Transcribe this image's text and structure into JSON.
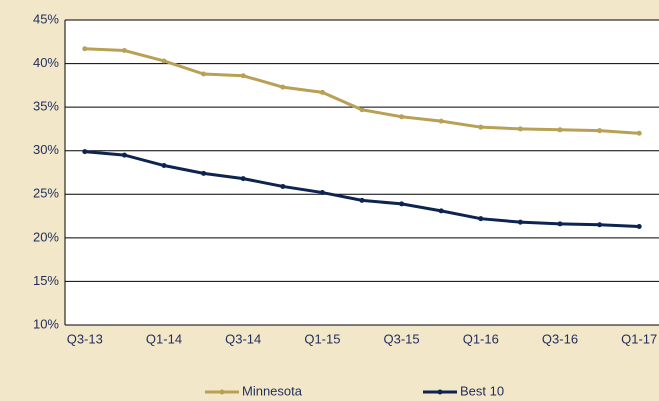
{
  "chart_data": {
    "type": "line",
    "categories": [
      "Q3-13",
      null,
      "Q1-14",
      null,
      "Q3-14",
      null,
      "Q1-15",
      null,
      "Q3-15",
      null,
      "Q1-16",
      null,
      "Q3-16",
      null,
      "Q1-17"
    ],
    "series": [
      {
        "name": "Minnesota",
        "color": "#b8a054",
        "values": [
          41.7,
          41.5,
          40.3,
          38.8,
          38.6,
          37.3,
          36.7,
          34.7,
          33.9,
          33.4,
          32.7,
          32.5,
          32.4,
          32.3,
          32.0
        ]
      },
      {
        "name": "Best 10",
        "color": "#0d2350",
        "values": [
          29.9,
          29.5,
          28.3,
          27.4,
          26.8,
          25.9,
          25.2,
          24.3,
          23.9,
          23.1,
          22.2,
          21.8,
          21.6,
          21.5,
          21.3
        ]
      }
    ],
    "ylim": [
      10,
      45
    ],
    "yticks": [
      {
        "value": 10,
        "label": "10%"
      },
      {
        "value": 15,
        "label": "15%"
      },
      {
        "value": 20,
        "label": "20%"
      },
      {
        "value": 25,
        "label": "25%"
      },
      {
        "value": 30,
        "label": "30%"
      },
      {
        "value": 35,
        "label": "35%"
      },
      {
        "value": 40,
        "label": "40%"
      },
      {
        "value": 45,
        "label": "45%"
      }
    ],
    "grid": true,
    "legend": "bottom"
  }
}
